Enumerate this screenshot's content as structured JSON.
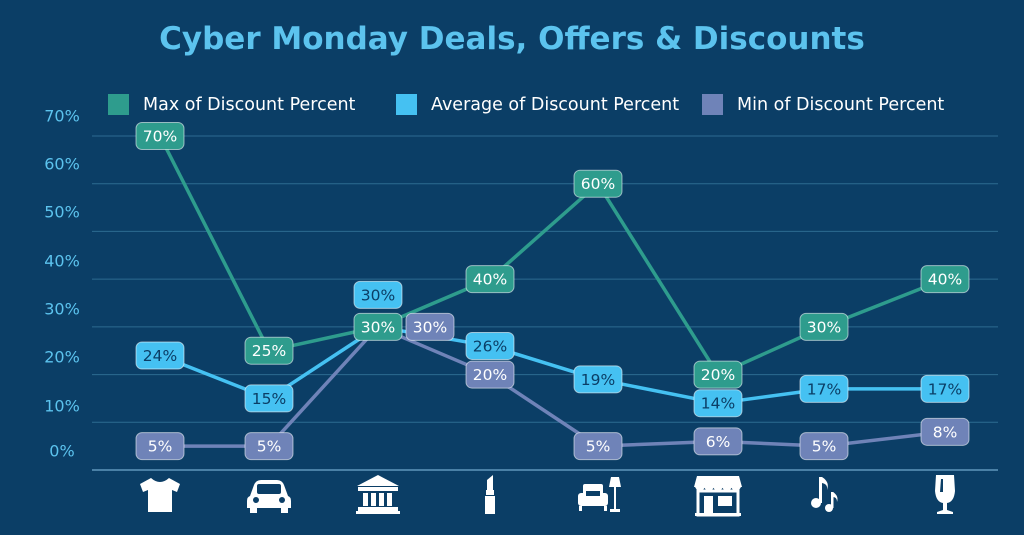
{
  "colors": {
    "background": "#0b3e66",
    "title": "#5cc3ee",
    "grid": "#2d6b91",
    "axis": "#6fa9cc",
    "tick": "#5cc3ee",
    "icon": "#ffffff"
  },
  "chart_data": {
    "type": "line",
    "title": "Cyber Monday Deals, Offers & Discounts",
    "xlabel": "",
    "ylabel": "",
    "ylim": [
      0,
      70
    ],
    "yticks": [
      "70%",
      "60%",
      "50%",
      "40%",
      "30%",
      "20%",
      "10%",
      "0%"
    ],
    "grid": true,
    "legend_position": "top",
    "categories": [
      "tshirt-icon",
      "car-icon",
      "bank-icon",
      "lipstick-icon",
      "furniture-icon",
      "store-icon",
      "music-icon",
      "glass-icon"
    ],
    "series": [
      {
        "name": "Max of Discount Percent",
        "color": "#2e9c8d",
        "values": [
          70,
          25,
          30,
          40,
          60,
          20,
          30,
          40
        ],
        "labels": [
          "70%",
          "25%",
          "30%",
          "40%",
          "60%",
          "20%",
          "30%",
          "40%"
        ]
      },
      {
        "name": "Average of Discount Percent",
        "color": "#45c1f2",
        "values": [
          24,
          15,
          30,
          26,
          19,
          14,
          17,
          17
        ],
        "labels": [
          "24%",
          "15%",
          "30%",
          "26%",
          "19%",
          "14%",
          "17%",
          "17%"
        ]
      },
      {
        "name": "Min of Discount Percent",
        "color": "#6f83b8",
        "values": [
          5,
          5,
          30,
          20,
          5,
          6,
          5,
          8
        ],
        "labels": [
          "5%",
          "5%",
          "30%",
          "20%",
          "5%",
          "6%",
          "5%",
          "8%"
        ]
      }
    ]
  }
}
